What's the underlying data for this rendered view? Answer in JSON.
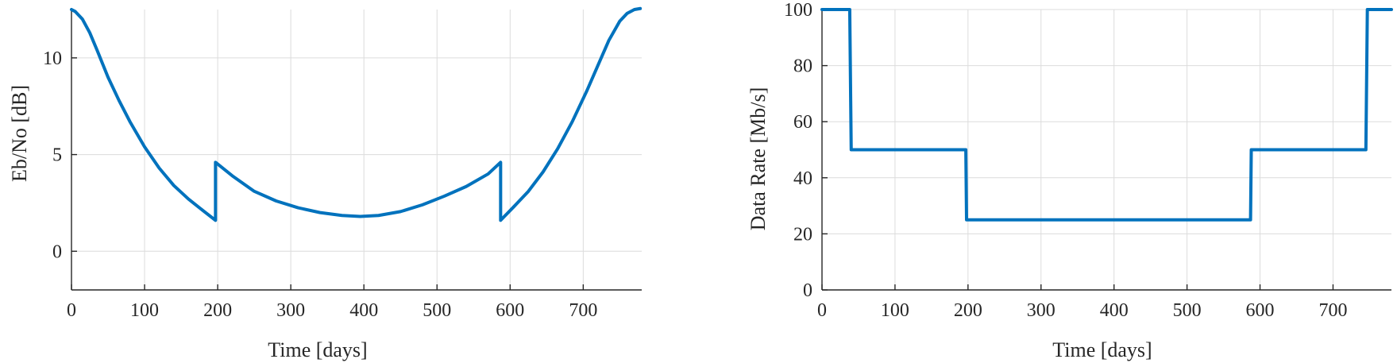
{
  "colors": {
    "series": "#0072bd",
    "axis": "#262626",
    "grid": "#dcdcdc"
  },
  "chart_data": [
    {
      "type": "line",
      "title": "",
      "xlabel": "Time [days]",
      "ylabel": "Eb/No [dB]",
      "xlim": [
        0,
        780
      ],
      "ylim": [
        -2,
        12.5
      ],
      "xticks": [
        0,
        100,
        200,
        300,
        400,
        500,
        600,
        700
      ],
      "yticks": [
        0,
        5,
        10
      ],
      "grid": true,
      "series": [
        {
          "x": [
            0,
            5,
            15,
            25,
            35,
            50,
            65,
            80,
            100,
            120,
            140,
            160,
            180,
            197,
            197,
            220,
            250,
            280,
            310,
            340,
            370,
            395,
            420,
            450,
            480,
            510,
            540,
            570,
            587,
            587,
            605,
            625,
            645,
            665,
            685,
            705,
            720,
            735,
            750,
            760,
            770,
            778
          ],
          "y": [
            12.5,
            12.4,
            12.0,
            11.3,
            10.4,
            9.0,
            7.8,
            6.7,
            5.4,
            4.3,
            3.4,
            2.7,
            2.1,
            1.6,
            4.6,
            3.9,
            3.1,
            2.6,
            2.25,
            2.0,
            1.85,
            1.8,
            1.85,
            2.05,
            2.4,
            2.85,
            3.35,
            4.0,
            4.6,
            1.6,
            2.3,
            3.1,
            4.1,
            5.3,
            6.7,
            8.3,
            9.6,
            10.9,
            11.9,
            12.3,
            12.5,
            12.55
          ]
        }
      ]
    },
    {
      "type": "line",
      "title": "",
      "xlabel": "Time [days]",
      "ylabel": "Data Rate [Mb/s]",
      "xlim": [
        0,
        780
      ],
      "ylim": [
        0,
        100
      ],
      "xticks": [
        0,
        100,
        200,
        300,
        400,
        500,
        600,
        700
      ],
      "yticks": [
        0,
        20,
        40,
        60,
        80,
        100
      ],
      "grid": true,
      "series": [
        {
          "x": [
            0,
            38,
            40,
            197,
            198,
            587,
            588,
            745,
            747,
            780
          ],
          "y": [
            100,
            100,
            50,
            50,
            25,
            25,
            50,
            50,
            100,
            100
          ]
        }
      ]
    }
  ]
}
